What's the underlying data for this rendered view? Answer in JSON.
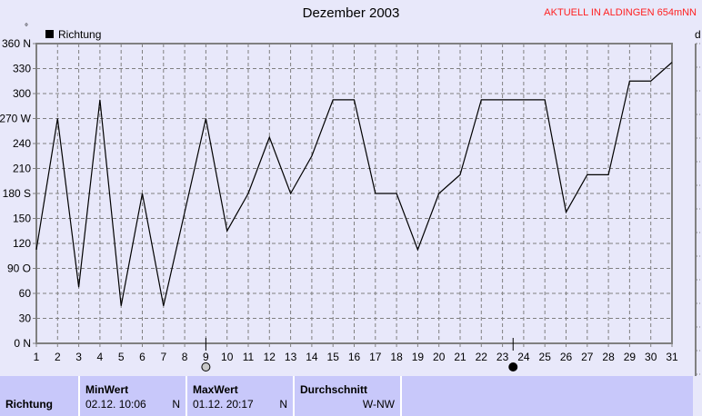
{
  "chart_data": {
    "type": "line",
    "title": "Dezember 2003",
    "subtitle": "AKTUELL IN ALDINGEN 654mNN",
    "ylabel": "°",
    "right_axis_label": "d",
    "legend": {
      "label": "Richtung",
      "placement": "top-left"
    },
    "grid": true,
    "xlim": [
      1,
      31
    ],
    "ylim": [
      0,
      360
    ],
    "x_ticks": [
      "1",
      "2",
      "3",
      "4",
      "5",
      "6",
      "7",
      "8",
      "9",
      "10",
      "11",
      "12",
      "13",
      "14",
      "15",
      "16",
      "17",
      "18",
      "19",
      "20",
      "21",
      "22",
      "23",
      "24",
      "25",
      "26",
      "27",
      "28",
      "29",
      "30",
      "31"
    ],
    "y_ticks": [
      {
        "v": 0,
        "l": "0  N"
      },
      {
        "v": 30,
        "l": "30"
      },
      {
        "v": 60,
        "l": "60"
      },
      {
        "v": 90,
        "l": "90  O"
      },
      {
        "v": 120,
        "l": "120"
      },
      {
        "v": 150,
        "l": "150"
      },
      {
        "v": 180,
        "l": "180 S"
      },
      {
        "v": 210,
        "l": "210"
      },
      {
        "v": 240,
        "l": "240"
      },
      {
        "v": 270,
        "l": "270 W"
      },
      {
        "v": 300,
        "l": "300"
      },
      {
        "v": 330,
        "l": "330"
      },
      {
        "v": 360,
        "l": "360 N"
      }
    ],
    "series": [
      {
        "name": "Richtung",
        "color": "#000000",
        "values": [
          112.5,
          270,
          67.5,
          292.5,
          45,
          180,
          45,
          157.5,
          270,
          135,
          180,
          247.5,
          180,
          225,
          292.5,
          292.5,
          180,
          180,
          112.5,
          180,
          202.5,
          292.5,
          292.5,
          292.5,
          292.5,
          157.5,
          202.5,
          202.5,
          315,
          315,
          337.5
        ]
      }
    ],
    "moon_phases": [
      {
        "day": 9,
        "phase": "first-quarter"
      },
      {
        "day": 23.5,
        "phase": "new-moon"
      }
    ]
  },
  "table": {
    "row_label": "Richtung",
    "columns": [
      {
        "header": "MinWert",
        "date": "02.12.  10:06",
        "value": "N"
      },
      {
        "header": "MaxWert",
        "date": "01.12.  20:17",
        "value": "N"
      },
      {
        "header": "Durchschnitt",
        "date": "",
        "value": "W-NW"
      }
    ]
  }
}
